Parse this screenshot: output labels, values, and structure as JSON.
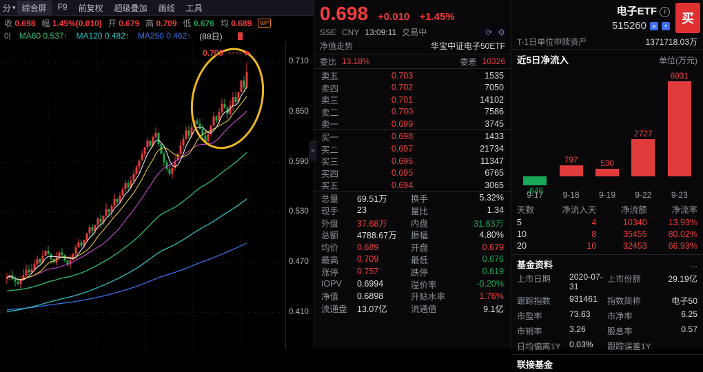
{
  "colors": {
    "up": "#f23c3c",
    "down": "#17a85a",
    "annotation_yellow": "#edb822",
    "ma60": "#2fbf6f",
    "ma120": "#2fbfbf",
    "ma250": "#3a6fe8",
    "buy_button": "#e03030"
  },
  "toolbar": {
    "left_clipped": "分",
    "tabs": [
      "综合屏",
      "F9",
      "前复权",
      "超级叠加",
      "画线",
      "工具"
    ]
  },
  "price_bar": {
    "badge": "WP",
    "items": [
      {
        "label": "收",
        "value": "0.698",
        "tone": "up"
      },
      {
        "label": "幅",
        "value": "1.45%(0.010)",
        "tone": "up"
      },
      {
        "label": "开",
        "value": "0.679",
        "tone": "up"
      },
      {
        "label": "高",
        "value": "0.709",
        "tone": "up"
      },
      {
        "label": "低",
        "value": "0.676",
        "tone": "down"
      },
      {
        "label": "均",
        "value": "0.689",
        "tone": "up"
      }
    ]
  },
  "ma_bar": {
    "left_clipped": "0|",
    "items": [
      {
        "label": "MA60",
        "value": "0.537↑"
      },
      {
        "label": "MA120",
        "value": "0.482↑"
      },
      {
        "label": "MA250",
        "value": "0.462↑"
      }
    ],
    "period": "(88日)"
  },
  "chart": {
    "y_axis": [
      "0.710",
      "0.650",
      "0.590",
      "0.530",
      "0.470",
      "0.410"
    ],
    "annotation": "0.709",
    "ylim": [
      0.366,
      0.734
    ],
    "closes": [
      0.452,
      0.455,
      0.45,
      0.447,
      0.444,
      0.449,
      0.455,
      0.461,
      0.458,
      0.462,
      0.468,
      0.474,
      0.47,
      0.478,
      0.484,
      0.48,
      0.474,
      0.47,
      0.476,
      0.482,
      0.479,
      0.472,
      0.468,
      0.473,
      0.48,
      0.488,
      0.494,
      0.49,
      0.497,
      0.505,
      0.512,
      0.508,
      0.515,
      0.522,
      0.518,
      0.526,
      0.534,
      0.53,
      0.538,
      0.546,
      0.542,
      0.55,
      0.558,
      0.565,
      0.56,
      0.568,
      0.576,
      0.584,
      0.592,
      0.6,
      0.608,
      0.616,
      0.61,
      0.62,
      0.625,
      0.612,
      0.6,
      0.59,
      0.582,
      0.576,
      0.583,
      0.592,
      0.6,
      0.61,
      0.618,
      0.628,
      0.622,
      0.632,
      0.64,
      0.636,
      0.63,
      0.622,
      0.615,
      0.624,
      0.634,
      0.645,
      0.64,
      0.65,
      0.66,
      0.655,
      0.648,
      0.658,
      0.668,
      0.662,
      0.674,
      0.688,
      0.68,
      0.698
    ],
    "last_high": 0.709
  },
  "quote": {
    "price": "0.698",
    "change": "+0.010",
    "change_pct": "+1.45%",
    "exchange": "SSE",
    "currency": "CNY",
    "time": "13:09:11",
    "status": "交易中",
    "nav_link": "净值走势",
    "fund_name": "华宝中证电子50ETF",
    "weibi_label": "委比",
    "weibi": "13.18%",
    "weicha_label": "委差",
    "weicha": "10326"
  },
  "order_book": {
    "asks": [
      {
        "label": "卖五",
        "price": "0.703",
        "vol": "1535"
      },
      {
        "label": "卖四",
        "price": "0.702",
        "vol": "7050"
      },
      {
        "label": "卖三",
        "price": "0.701",
        "vol": "14102"
      },
      {
        "label": "卖二",
        "price": "0.700",
        "vol": "7586"
      },
      {
        "label": "卖一",
        "price": "0.699",
        "vol": "3745"
      }
    ],
    "bids": [
      {
        "label": "买一",
        "price": "0.698",
        "vol": "1433"
      },
      {
        "label": "买二",
        "price": "0.697",
        "vol": "21734"
      },
      {
        "label": "买三",
        "price": "0.696",
        "vol": "11347"
      },
      {
        "label": "买四",
        "price": "0.695",
        "vol": "6765"
      },
      {
        "label": "买五",
        "price": "0.694",
        "vol": "3065"
      }
    ]
  },
  "stats": {
    "rows": [
      {
        "l1": "总量",
        "v1": "69.51万",
        "t1": "plain",
        "l2": "换手",
        "v2": "5.32%",
        "t2": "plain"
      },
      {
        "l1": "现手",
        "v1": "23",
        "t1": "plain",
        "l2": "量比",
        "v2": "1.34",
        "t2": "plain"
      },
      {
        "l1": "外盘",
        "v1": "37.68万",
        "t1": "up",
        "l2": "内盘",
        "v2": "31.83万",
        "t2": "down"
      },
      {
        "l1": "总额",
        "v1": "4788.67万",
        "t1": "plain",
        "l2": "振幅",
        "v2": "4.80%",
        "t2": "plain"
      },
      {
        "l1": "均价",
        "v1": "0.689",
        "t1": "up",
        "l2": "开盘",
        "v2": "0.679",
        "t2": "up"
      },
      {
        "l1": "最高",
        "v1": "0.709",
        "t1": "up",
        "l2": "最低",
        "v2": "0.676",
        "t2": "down"
      },
      {
        "l1": "涨停",
        "v1": "0.757",
        "t1": "up",
        "l2": "跌停",
        "v2": "0.619",
        "t2": "down"
      },
      {
        "l1": "IOPV",
        "v1": "0.6994",
        "t1": "plain",
        "l2": "溢价率",
        "v2": "-0.20%",
        "t2": "down"
      },
      {
        "l1": "净值",
        "v1": "0.6898",
        "t1": "plain",
        "l2": "升贴水率",
        "v2": "1.76%",
        "t2": "up"
      },
      {
        "l1": "流通盘",
        "v1": "13.07亿",
        "t1": "plain",
        "l2": "流通值",
        "v2": "9.1亿",
        "t2": "plain"
      }
    ]
  },
  "right": {
    "name": "电子ETF",
    "code": "515260",
    "buy_label": "买",
    "t1_label": "T-1日单位申赎资产",
    "t1_value": "1371718.03万",
    "flow_title": "近5日净流入",
    "flow_unit": "单位(万元)",
    "flow_table_headers": [
      "天数",
      "净流入天",
      "净流额",
      "净流率"
    ],
    "flow_table_rows": [
      [
        "5",
        "4",
        "10340",
        "13.93%"
      ],
      [
        "10",
        "8",
        "35455",
        "80.02%"
      ],
      [
        "20",
        "10",
        "32453",
        "66.93%"
      ]
    ],
    "fund_info_title": "基金资料",
    "fund_more": "...",
    "fund_info": [
      [
        "上市日期",
        "2020-07-31",
        "上市份额",
        "29.19亿"
      ],
      [
        "跟踪指数",
        "931461",
        "指数简称",
        "电子50"
      ],
      [
        "市盈率",
        "73.63",
        "市净率",
        "6.25"
      ],
      [
        "市销率",
        "3.26",
        "股息率",
        "0.57"
      ],
      [
        "日均偏离1Y",
        "0.03%",
        "跟踪误差1Y",
        ""
      ]
    ],
    "link_fund_title": "联接基金"
  },
  "chart_data": {
    "type": "bar",
    "title": "近5日净流入",
    "unit": "万元",
    "categories": [
      "9-17",
      "9-18",
      "9-19",
      "9-22",
      "9-23"
    ],
    "values": [
      -646,
      797,
      530,
      2727,
      6931
    ]
  }
}
